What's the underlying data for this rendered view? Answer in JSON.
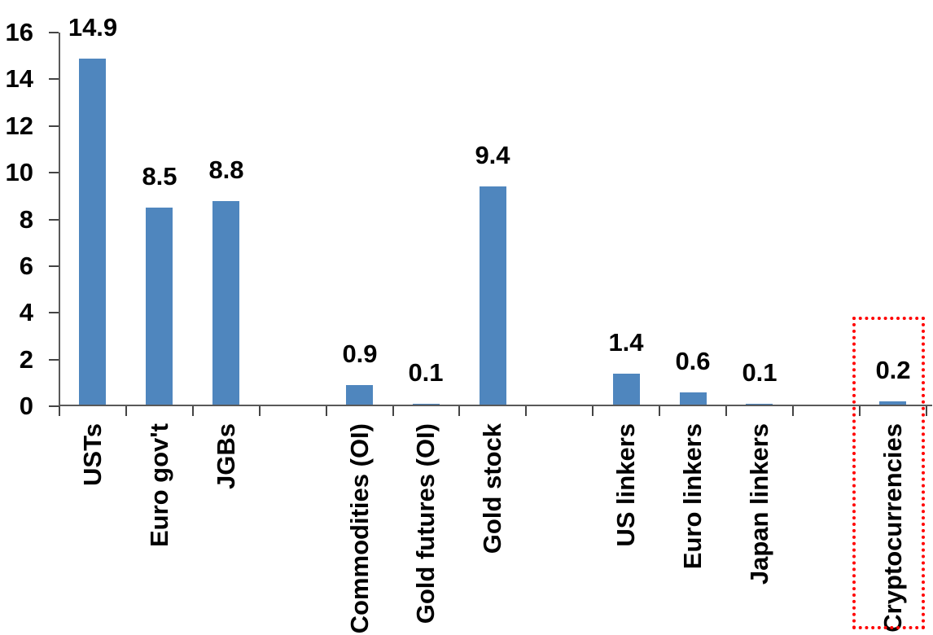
{
  "chart_data": {
    "type": "bar",
    "title": "",
    "categories": [
      "USTs",
      "Euro gov't",
      "JGBs",
      "",
      "Commodities (OI)",
      "Gold futures (OI)",
      "Gold stock",
      "",
      "US linkers",
      "Euro linkers",
      "Japan linkers",
      "",
      "Cryptocurrencies"
    ],
    "values": [
      14.9,
      8.5,
      8.8,
      null,
      0.9,
      0.1,
      9.4,
      null,
      1.4,
      0.6,
      0.1,
      null,
      0.2
    ],
    "value_labels": [
      "14.9",
      "8.5",
      "8.8",
      "",
      "0.9",
      "0.1",
      "9.4",
      "",
      "1.4",
      "0.6",
      "0.1",
      "",
      "0.2"
    ],
    "xlabel": "",
    "ylabel": "",
    "ylim": [
      0,
      16
    ],
    "yticks": [
      0,
      2,
      4,
      6,
      8,
      10,
      12,
      14,
      16
    ],
    "grid": false,
    "legend": null,
    "bar_color": "#4F86BE",
    "axis_color": "#595959",
    "text_color": "#000000",
    "highlight": {
      "target_category": "Cryptocurrencies",
      "shape": "dotted-rectangle",
      "color": "#FF0000"
    }
  }
}
